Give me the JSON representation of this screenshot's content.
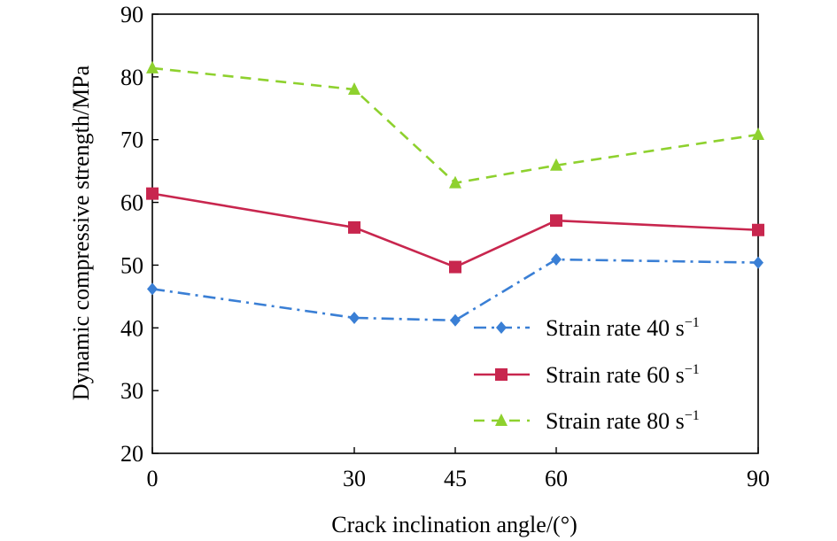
{
  "chart_data": {
    "type": "line",
    "title": "",
    "xlabel": "Crack inclination angle/(°)",
    "ylabel": "Dynamic compressive strength/MPa",
    "x": [
      0,
      30,
      45,
      60,
      90
    ],
    "x_tick_labels": [
      "0",
      "30",
      "45",
      "60",
      "90"
    ],
    "y_tick_labels": [
      "20",
      "30",
      "40",
      "50",
      "60",
      "70",
      "80",
      "90"
    ],
    "ylim": [
      20,
      90
    ],
    "grid": false,
    "legend_position": "bottom-right",
    "series": [
      {
        "name": "Strain rate 40 s",
        "name_sup": "−1",
        "values": [
          46.2,
          41.6,
          41.2,
          50.9,
          50.4
        ],
        "color": "#3a7fd5",
        "marker": "diamond",
        "line_style": "dash-dot"
      },
      {
        "name": "Strain rate 60 s",
        "name_sup": "−1",
        "values": [
          61.4,
          56.0,
          49.7,
          57.1,
          55.6
        ],
        "color": "#c8264e",
        "marker": "square",
        "line_style": "solid"
      },
      {
        "name": "Strain rate 80 s",
        "name_sup": "−1",
        "values": [
          81.4,
          78.0,
          63.1,
          65.9,
          70.8
        ],
        "color": "#8ed12e",
        "marker": "triangle",
        "line_style": "dashed"
      }
    ]
  }
}
